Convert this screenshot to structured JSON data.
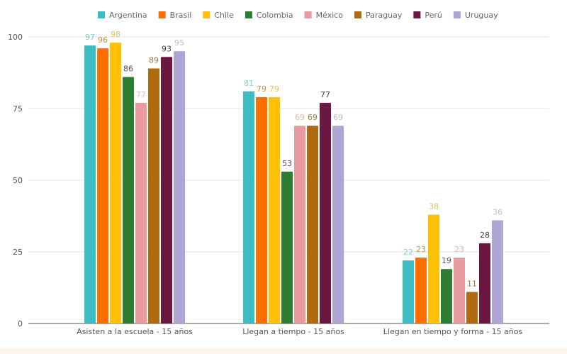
{
  "chart_data": {
    "type": "bar",
    "title": "",
    "xlabel": "",
    "ylabel": "",
    "ylim": [
      0,
      100
    ],
    "yticks": [
      0,
      25,
      50,
      75,
      100
    ],
    "grid": true,
    "legend_position": "top",
    "categories": [
      "Asisten a la escuela - 15 años",
      "Llegan a tiempo - 15 años",
      "Llegan en tiempo y forma - 15 años"
    ],
    "series": [
      {
        "name": "Argentina",
        "color": "#3cbcc3",
        "label_color": "#7fcfd3",
        "values": [
          97,
          81,
          22
        ]
      },
      {
        "name": "Brasil",
        "color": "#ff6f00",
        "label_color": "#c9903e",
        "values": [
          96,
          79,
          23
        ]
      },
      {
        "name": "Chile",
        "color": "#ffc107",
        "label_color": "#e0c060",
        "values": [
          98,
          79,
          38
        ]
      },
      {
        "name": "Colombia",
        "color": "#2e7d32",
        "label_color": "#555555",
        "values": [
          86,
          53,
          19
        ]
      },
      {
        "name": "México",
        "color": "#e89a9f",
        "label_color": "#e0b7b0",
        "values": [
          77,
          69,
          23
        ]
      },
      {
        "name": "Paraguay",
        "color": "#b06a10",
        "label_color": "#9a7a45",
        "values": [
          89,
          69,
          11
        ]
      },
      {
        "name": "Perú",
        "color": "#6a1842",
        "label_color": "#444444",
        "values": [
          93,
          77,
          28
        ]
      },
      {
        "name": "Uruguay",
        "color": "#b0a6d6",
        "label_color": "#bcbcc8",
        "values": [
          95,
          69,
          36
        ]
      }
    ]
  }
}
